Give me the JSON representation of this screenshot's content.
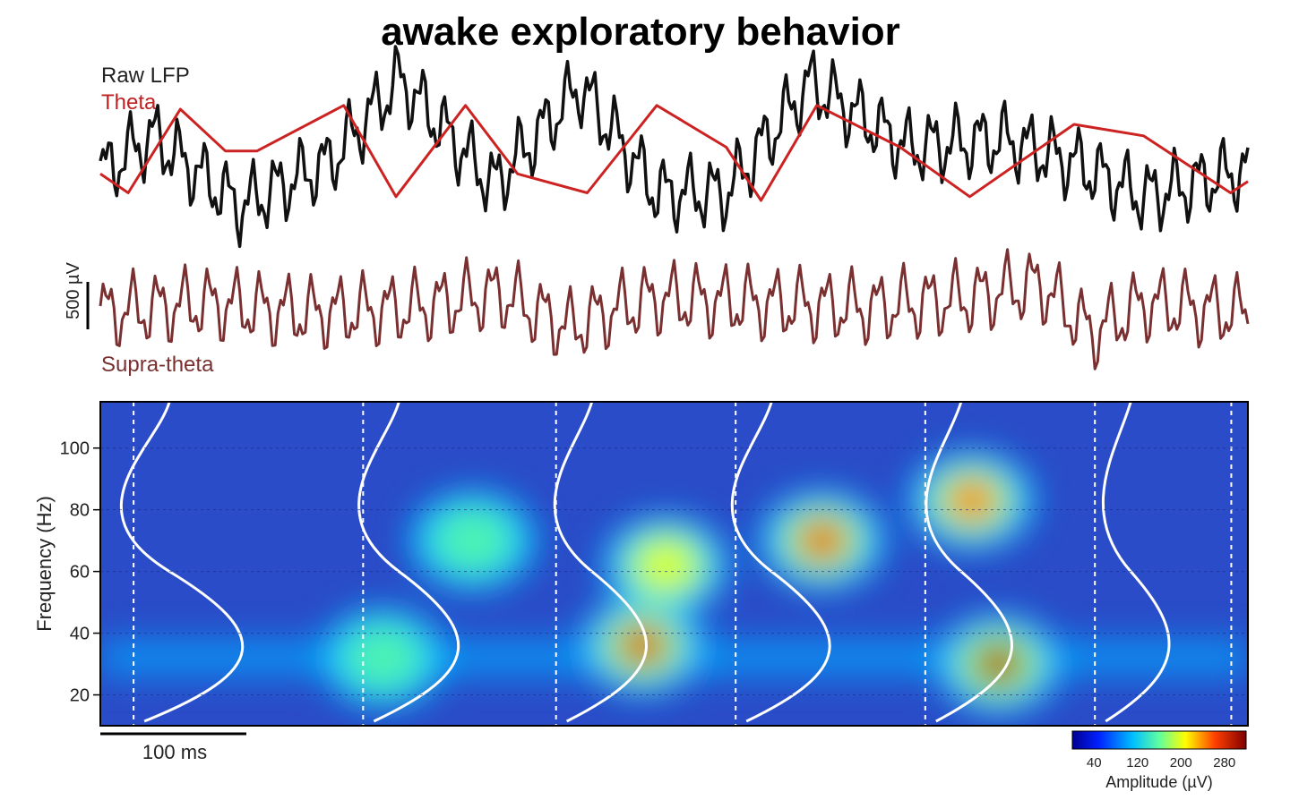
{
  "chart_data": [
    {
      "type": "line",
      "title": "awake exploratory behavior",
      "series": [
        {
          "name": "Raw LFP",
          "color": "#111111",
          "x": [
            0,
            15,
            40,
            66,
            86,
            113,
            138,
            160,
            180,
            204,
            232,
            260,
            280,
            300,
            330
          ],
          "y": [
            -0.05,
            0.45,
            -0.48,
            0.1,
            1.2,
            -0.2,
            1.1,
            -0.3,
            -0.3,
            1.15,
            0.3,
            0.4,
            0.1,
            -0.35,
            0.0
          ]
        },
        {
          "name": "Theta",
          "color": "#cc2222",
          "x": [
            0,
            8,
            23,
            36,
            45,
            70,
            85,
            105,
            120,
            140,
            160,
            180,
            190,
            206,
            230,
            250,
            280,
            300,
            325,
            330
          ],
          "y": [
            -0.05,
            -0.3,
            0.8,
            0.25,
            0.25,
            0.85,
            -0.35,
            0.85,
            -0.05,
            -0.3,
            0.85,
            0.3,
            -0.4,
            0.85,
            0.3,
            -0.35,
            0.6,
            0.45,
            -0.3,
            -0.15
          ]
        },
        {
          "name": "Supra-theta",
          "color": "#7a3030",
          "x": [
            0,
            30,
            60,
            90,
            115,
            135,
            145,
            160,
            190,
            220,
            250,
            270,
            285,
            300,
            330
          ],
          "y": [
            0.0,
            0.2,
            0.0,
            0.1,
            0.4,
            -0.3,
            0.0,
            0.3,
            0.2,
            0.1,
            0.3,
            0.6,
            -0.4,
            0.2,
            0.0
          ]
        }
      ],
      "scale_bar": "500 µV"
    },
    {
      "type": "heatmap",
      "ylabel": "Frequency (Hz)",
      "yticks": [
        20,
        40,
        60,
        80,
        100
      ],
      "ylim": [
        10,
        115
      ],
      "scale_bar": "100 ms",
      "colorbar": {
        "label": "Amplitude (µV)",
        "ticks": [
          40,
          120,
          200,
          280
        ],
        "range": [
          0,
          320
        ]
      },
      "theta_cycle_boundaries_ms": [
        10,
        79,
        137,
        191,
        248,
        299,
        340
      ],
      "hotspots": [
        {
          "t": 270,
          "f": 30,
          "amplitude": 300
        },
        {
          "t": 163,
          "f": 36,
          "amplitude": 280
        },
        {
          "t": 217,
          "f": 70,
          "amplitude": 270
        },
        {
          "t": 262,
          "f": 83,
          "amplitude": 250
        },
        {
          "t": 85,
          "f": 32,
          "amplitude": 150
        },
        {
          "t": 112,
          "f": 70,
          "amplitude": 150
        },
        {
          "t": 170,
          "f": 62,
          "amplitude": 200
        }
      ]
    }
  ],
  "text": {
    "title": "awake exploratory behavior",
    "raw_lfp": "Raw LFP",
    "theta": "Theta",
    "supra_theta": "Supra-theta",
    "voltage_scale": "500 µV",
    "time_scale": "100 ms",
    "ylabel": "Frequency (Hz)",
    "colorbar_label": "Amplitude (µV)"
  }
}
